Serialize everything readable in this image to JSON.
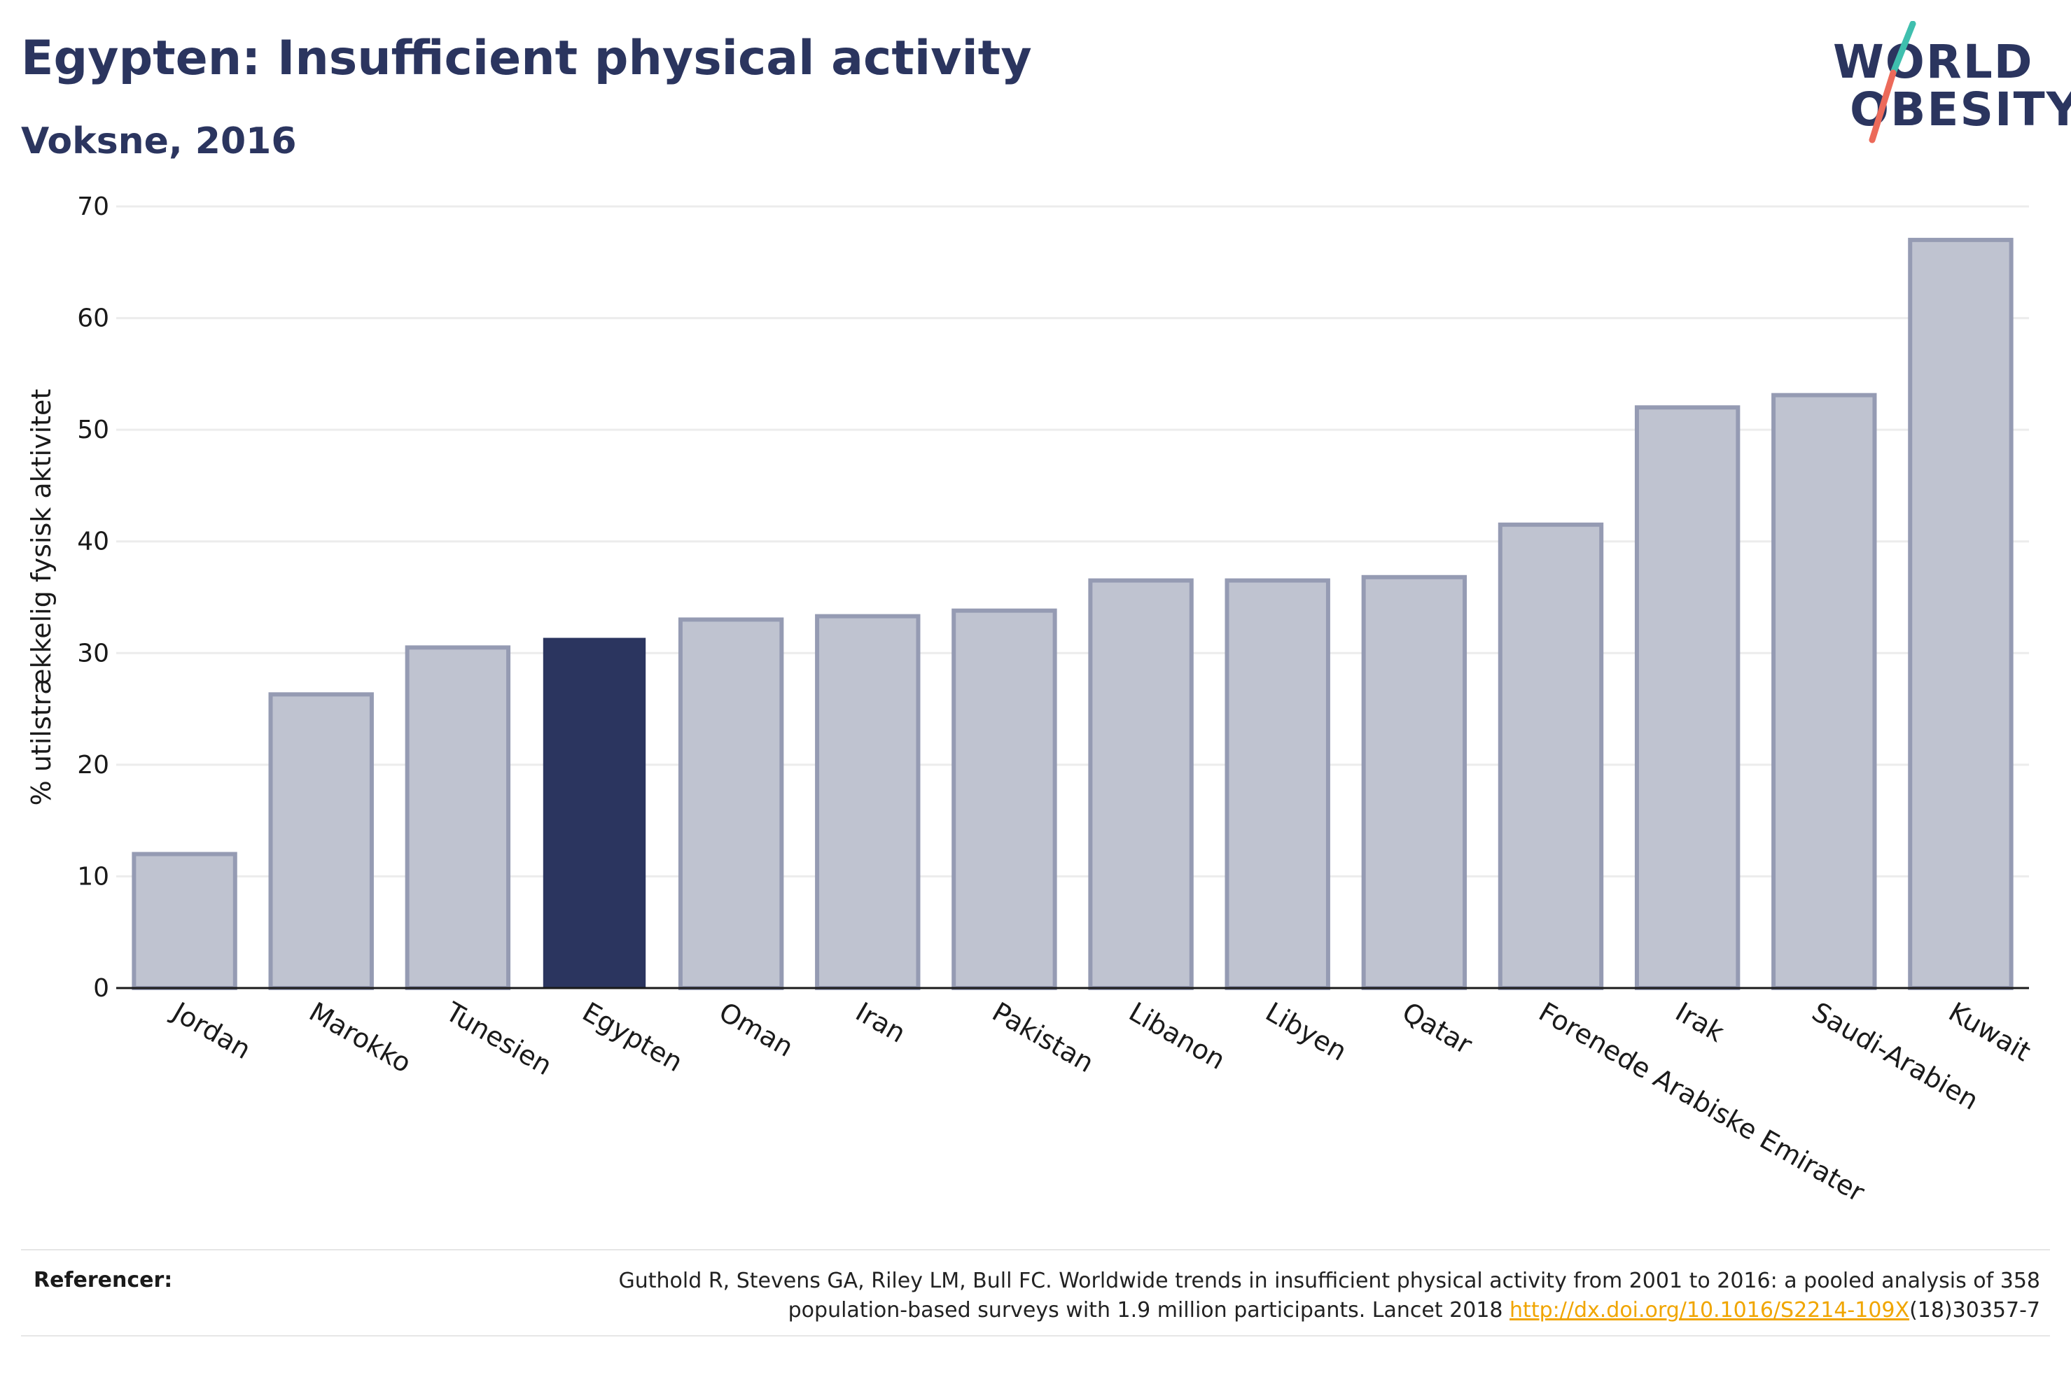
{
  "title": "Egypten: Insufficient physical activity",
  "subtitle": "Voksne, 2016",
  "logo": {
    "line1": "WORLD",
    "line2": "OBESITY",
    "accent_teal": "#3fbfae",
    "accent_coral": "#ec6a5a"
  },
  "colors": {
    "highlight": "#2b355f",
    "bar_fill": "#bfc3d0",
    "bar_stroke": "#959bb3",
    "gridline": "#ececec",
    "link": "#f0a500"
  },
  "chart_data": {
    "type": "bar",
    "title": "Egypten: Insufficient physical activity",
    "subtitle": "Voksne, 2016",
    "xlabel": "",
    "ylabel": "% utilstrækkelig fysisk aktivitet",
    "ylim": [
      0,
      70
    ],
    "yticks": [
      0,
      10,
      20,
      30,
      40,
      50,
      60,
      70
    ],
    "grid": true,
    "highlight": "Egypten",
    "categories": [
      "Jordan",
      "Marokko",
      "Tunesien",
      "Egypten",
      "Oman",
      "Iran",
      "Pakistan",
      "Libanon",
      "Libyen",
      "Qatar",
      "Forenede Arabiske Emirater",
      "Irak",
      "Saudi-Arabien",
      "Kuwait"
    ],
    "values": [
      12.0,
      26.3,
      30.5,
      31.3,
      33.0,
      33.3,
      33.8,
      36.5,
      36.5,
      36.8,
      41.5,
      52.0,
      53.1,
      67.0
    ]
  },
  "references": {
    "label": "Referencer:",
    "text_line1": "Guthold R, Stevens GA, Riley LM, Bull FC. Worldwide trends in insufficient physical activity from 2001 to 2016: a pooled analysis of 358",
    "text_line2_pre": "population-based surveys with 1.9 million participants. Lancet 2018 ",
    "link_text": "http://dx.doi.org/10.1016/S2214-109X",
    "text_line2_post": "(18)30357-7"
  }
}
